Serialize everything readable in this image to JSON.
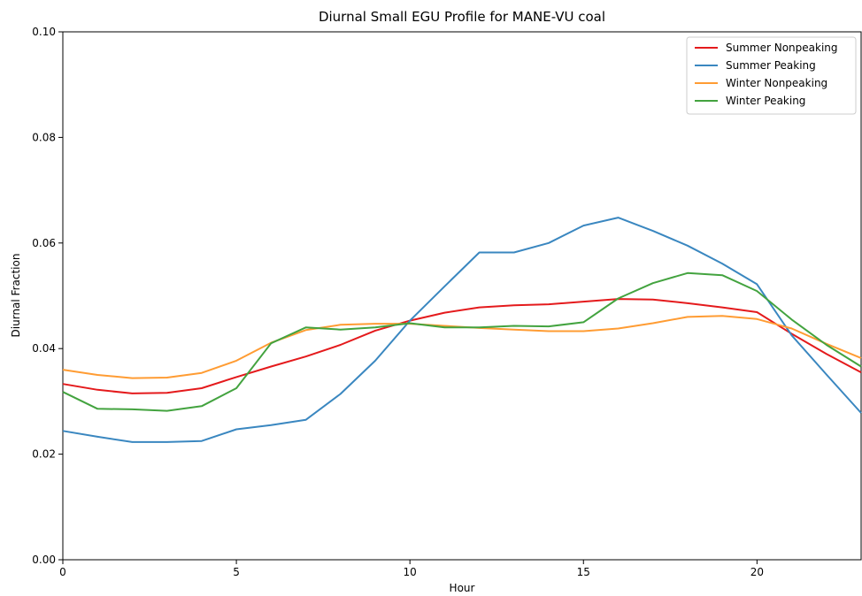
{
  "chart_data": {
    "type": "line",
    "title": "Diurnal Small EGU Profile for MANE-VU coal",
    "xlabel": "Hour",
    "ylabel": "Diurnal Fraction",
    "xlim": [
      0,
      23
    ],
    "ylim": [
      0,
      0.1
    ],
    "xticks": [
      0,
      5,
      10,
      15,
      20
    ],
    "xtick_labels": [
      "0",
      "5",
      "10",
      "15",
      "20"
    ],
    "yticks": [
      0,
      0.02,
      0.04,
      0.06,
      0.08,
      0.1
    ],
    "ytick_labels": [
      "0.00",
      "0.02",
      "0.04",
      "0.06",
      "0.08",
      "0.10"
    ],
    "grid": false,
    "legend_position": "top-right",
    "x": [
      0,
      1,
      2,
      3,
      4,
      5,
      6,
      7,
      8,
      9,
      10,
      11,
      12,
      13,
      14,
      15,
      16,
      17,
      18,
      19,
      20,
      21,
      22,
      23
    ],
    "series": [
      {
        "name": "Summer Nonpeaking",
        "color": "#e41a1c",
        "values": [
          0.0333,
          0.0322,
          0.0315,
          0.0316,
          0.0325,
          0.0346,
          0.0366,
          0.0385,
          0.0407,
          0.0434,
          0.0453,
          0.0468,
          0.0478,
          0.0482,
          0.0484,
          0.0489,
          0.0494,
          0.0493,
          0.0486,
          0.0478,
          0.0469,
          0.0428,
          0.039,
          0.0355
        ]
      },
      {
        "name": "Summer Peaking",
        "color": "#3a87c0",
        "values": [
          0.0244,
          0.0233,
          0.0223,
          0.0223,
          0.0225,
          0.0247,
          0.0255,
          0.0265,
          0.0314,
          0.0377,
          0.0453,
          0.0518,
          0.0582,
          0.0582,
          0.06,
          0.0633,
          0.0648,
          0.0623,
          0.0595,
          0.0561,
          0.0522,
          0.0425,
          0.0351,
          0.0278
        ]
      },
      {
        "name": "Winter Nonpeaking",
        "color": "#ff9c33",
        "values": [
          0.036,
          0.035,
          0.0344,
          0.0345,
          0.0354,
          0.0377,
          0.0411,
          0.0435,
          0.0445,
          0.0447,
          0.0447,
          0.0443,
          0.0439,
          0.0436,
          0.0433,
          0.0433,
          0.0438,
          0.0448,
          0.046,
          0.0462,
          0.0456,
          0.0438,
          0.0409,
          0.0382
        ]
      },
      {
        "name": "Winter Peaking",
        "color": "#43a33f",
        "values": [
          0.0318,
          0.0286,
          0.0285,
          0.0282,
          0.0291,
          0.0325,
          0.041,
          0.044,
          0.0436,
          0.044,
          0.0448,
          0.044,
          0.044,
          0.0443,
          0.0442,
          0.045,
          0.0495,
          0.0524,
          0.0543,
          0.0539,
          0.0509,
          0.0455,
          0.0407,
          0.0366
        ]
      }
    ]
  }
}
